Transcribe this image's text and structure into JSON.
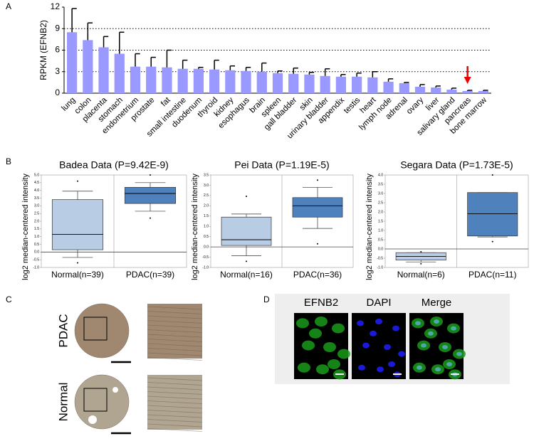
{
  "panels": {
    "a": "A",
    "b": "B",
    "c": "C",
    "d": "D"
  },
  "chart_data": [
    {
      "type": "bar",
      "ylabel": "RPKM (EFNB2)",
      "color": "#9999ff",
      "categories": [
        "lung",
        "colon",
        "placenta",
        "stomach",
        "endometrium",
        "prostate",
        "fat",
        "small intestine",
        "duodenum",
        "thyroid",
        "kidney",
        "esophagus",
        "brain",
        "spleen",
        "gall bladder",
        "skin",
        "urinary bladder",
        "appendix",
        "testis",
        "heart",
        "lymph node",
        "adrenal",
        "ovary",
        "liver",
        "salivary gland",
        "pancreas",
        "bone marrow"
      ],
      "values": [
        8.5,
        7.4,
        6.4,
        5.5,
        3.7,
        3.7,
        3.6,
        3.4,
        3.4,
        3.3,
        3.2,
        3.1,
        3.0,
        2.8,
        2.7,
        2.6,
        2.4,
        2.3,
        2.3,
        2.2,
        1.6,
        1.4,
        0.9,
        0.8,
        0.5,
        0.3,
        0.3
      ],
      "errors": [
        3.3,
        2.4,
        1.5,
        3.0,
        1.8,
        1.3,
        2.4,
        1.2,
        0.2,
        1.3,
        0.6,
        0.5,
        1.2,
        0.3,
        0.8,
        0.3,
        1.0,
        0.3,
        0.5,
        0.8,
        0.4,
        0.1,
        0.3,
        0.2,
        0.2,
        0.1,
        0.1
      ],
      "ylim": [
        0,
        12
      ],
      "yticks": [
        0,
        3,
        6,
        9,
        12
      ],
      "grid_dotted": [
        3,
        6,
        9
      ]
    },
    {
      "type": "box",
      "title": "Badea Data (P=9.42E-9)",
      "ylabel": "log2 median-centered intensity",
      "categories": [
        "Normal(n=39)",
        "PDAC(n=39)"
      ],
      "colors": [
        "#b8cce4",
        "#4f81bd"
      ],
      "boxes": [
        {
          "whisker_low": -0.35,
          "q1": 0.15,
          "median": 1.15,
          "q3": 3.4,
          "whisker_high": 3.95,
          "outliers": [
            4.6,
            -0.7
          ]
        },
        {
          "whisker_low": 2.65,
          "q1": 3.15,
          "median": 3.8,
          "q3": 4.2,
          "whisker_high": 4.5,
          "outliers": [
            5.0,
            2.2
          ]
        }
      ],
      "ylim": [
        -1.0,
        5.0
      ],
      "yticks": [
        {
          "value": -1,
          "label": "-1.0"
        },
        -0.5,
        {
          "value": 0,
          "label": "0.0"
        },
        0.5,
        {
          "value": 1,
          "label": "1.0"
        },
        1.5,
        {
          "value": 2,
          "label": "2.0"
        },
        2.5,
        {
          "value": 3,
          "label": "3.0"
        },
        3.5,
        {
          "value": 4,
          "label": "4.0"
        },
        4.5,
        {
          "value": 5,
          "label": "5.0"
        }
      ]
    },
    {
      "type": "box",
      "title": "Pei Data (P=1.19E-5)",
      "ylabel": "log2 median-centered intensity",
      "categories": [
        "Normal(n=16)",
        "PDAC(n=36)"
      ],
      "colors": [
        "#b8cce4",
        "#4f81bd"
      ],
      "boxes": [
        {
          "whisker_low": -0.43,
          "q1": 0.07,
          "median": 0.35,
          "q3": 1.45,
          "whisker_high": 1.6,
          "outliers": [
            2.46,
            -0.7
          ]
        },
        {
          "whisker_low": 0.9,
          "q1": 1.45,
          "median": 2.0,
          "q3": 2.4,
          "whisker_high": 2.9,
          "outliers": [
            3.25,
            0.15
          ]
        }
      ],
      "ylim": [
        -1.0,
        3.5
      ],
      "yticks": [
        {
          "value": -1,
          "label": "-1.0"
        },
        -0.5,
        {
          "value": 0,
          "label": "0.0"
        },
        0.5,
        {
          "value": 1,
          "label": "1.0"
        },
        1.5,
        {
          "value": 2,
          "label": "2.0"
        },
        2.5,
        {
          "value": 3,
          "label": "3.0"
        },
        3.5
      ]
    },
    {
      "type": "box",
      "title": "Segara Data (P=1.73E-5)",
      "ylabel": "log2 median-centered intensity",
      "categories": [
        "Normal(n=6)",
        "PDAC(n=11)"
      ],
      "colors": [
        "#b8cce4",
        "#4f81bd"
      ],
      "boxes": [
        {
          "whisker_low": -0.7,
          "q1": -0.6,
          "median": -0.4,
          "q3": -0.2,
          "whisker_high": -0.2,
          "outliers": [
            -0.15,
            -0.8
          ]
        },
        {
          "whisker_low": 0.65,
          "q1": 0.7,
          "median": 1.9,
          "q3": 3.05,
          "whisker_high": 3.05,
          "outliers": [
            4.0,
            0.4
          ]
        }
      ],
      "ylim": [
        -1.0,
        4.0
      ],
      "yticks": [
        {
          "value": -1,
          "label": "-1.0"
        },
        -0.5,
        {
          "value": 0,
          "label": "0.0"
        },
        0.5,
        {
          "value": 1,
          "label": "1.0"
        },
        1.5,
        {
          "value": 2,
          "label": "2.0"
        },
        2.5,
        {
          "value": 3,
          "label": "3.0"
        },
        3.5,
        {
          "value": 4,
          "label": "4.0"
        }
      ]
    }
  ],
  "ihc": {
    "rows": [
      "PDAC",
      "Normal"
    ]
  },
  "if": {
    "columns": [
      "EFNB2",
      "DAPI",
      "Merge"
    ]
  }
}
